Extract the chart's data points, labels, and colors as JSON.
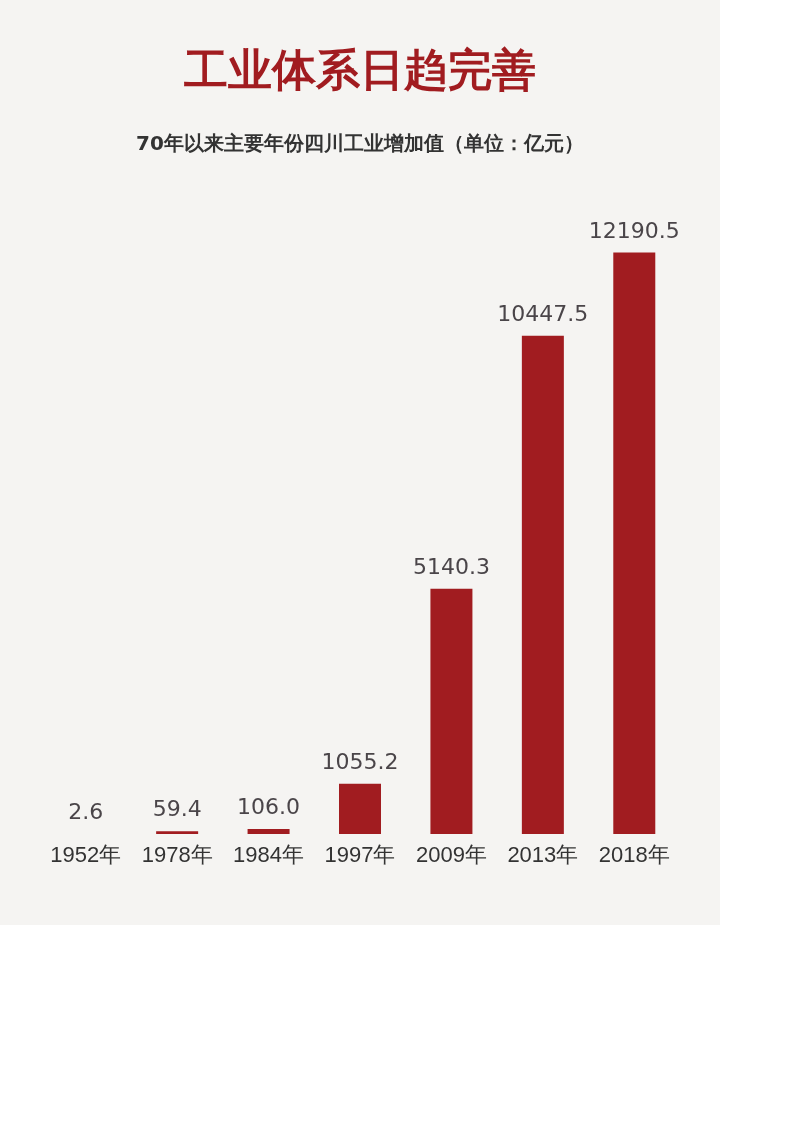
{
  "chart_data": {
    "type": "bar",
    "title": "工业体系日趋完善",
    "subtitle": "70年以来主要年份四川工业增加值（单位：亿元）",
    "categories": [
      "1952年",
      "1978年",
      "1984年",
      "1997年",
      "2009年",
      "2013年",
      "2018年"
    ],
    "values": [
      2.6,
      59.4,
      106.0,
      1055.2,
      5140.3,
      10447.5,
      12190.5
    ],
    "value_labels": [
      "2.6",
      "59.4",
      "106.0",
      "1055.2",
      "5140.3",
      "10447.5",
      "12190.5"
    ],
    "color": "#a11c20"
  }
}
